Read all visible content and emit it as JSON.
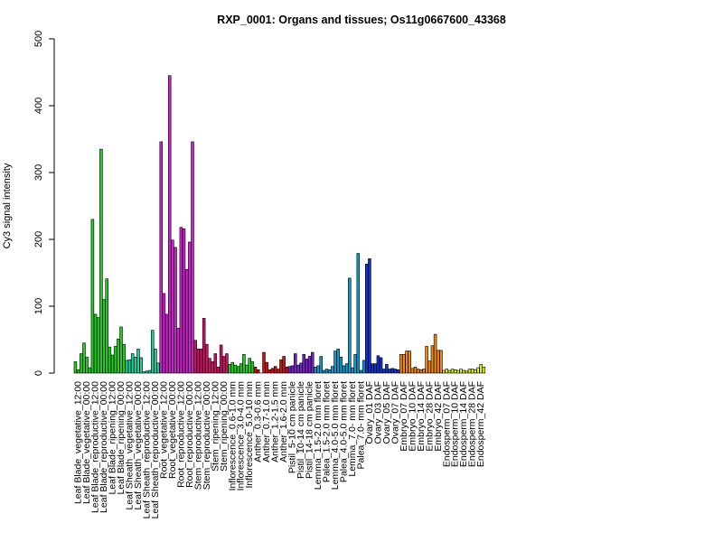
{
  "chart_data": {
    "type": "bar",
    "title": "RXP_0001: Organs and tissues; Os11g0667600_43368",
    "xlabel": "",
    "ylabel": "Cy3 signal intensity",
    "ylim": [
      0,
      500
    ],
    "yticks": [
      0,
      100,
      200,
      300,
      400,
      500
    ],
    "grid": false,
    "legend": "none",
    "categories": [
      "Leaf Blade_vegetative_12:00",
      "Leaf Blade_vegetative_00:00",
      "Leaf Blade_reproductive_12:00",
      "Leaf Blade_reproductive_00:00",
      "Leaf Blade_ripening_12:00",
      "Leaf Blade_ripening_00:00",
      "Leaf Sheath_vegetative_12:00",
      "Leaf Sheath_vegetative_00:00",
      "Leaf Sheath_reproductive_12:00",
      "Leaf Sheath_reproductive_00:00",
      "Root_vegetative_12:00",
      "Root_vegetative_00:00",
      "Root_reproductive_12:00",
      "Root_reproductive_00:00",
      "Stem_reproductive_12:00",
      "Stem_reproductive_00:00",
      "Stem_ripening_12:00",
      "Stem_ripening_00:00",
      "Inflorescence_0.6-1.0 mm",
      "Inflorescence_3.0-4.0 mm",
      "Inflorescence_5.0-10 mm",
      "Anther_0.3-0.6 mm",
      "Anther_0.7-1.0 mm",
      "Anther_1.2-1.5 mm",
      "Anther_1.6-2.0 mm",
      "Pistil_5-10 cm panicle",
      "Pistil_10-14 cm panicle",
      "Pistil_14-18 cm panicle",
      "Lemma_1.5-2.0 mm floret",
      "Palea_1.5-2.0 mm floret",
      "Lemma_4.0-5.0 mm floret",
      "Palea_4.0-5.0 mm floret",
      "Lemma_7.0- mm floret",
      "Palea_7.0- mm floret",
      "Ovary_01 DAF",
      "Ovary_03 DAF",
      "Ovary_05 DAF",
      "Ovary_07 DAF",
      "Embryo_07 DAF",
      "Embryo_10 DAF",
      "Embryo_14 DAF",
      "Embryo_28 DAF",
      "Embryo_42 DAF",
      "Endosperm_07 DAF",
      "Endosperm_10 DAF",
      "Endosperm_14 DAF",
      "Endosperm_28 DAF",
      "Endosperm_42 DAF"
    ],
    "replicate_values": [
      [
        17,
        5,
        29
      ],
      [
        45,
        24,
        8
      ],
      [
        230,
        88,
        83
      ],
      [
        335,
        110,
        141
      ],
      [
        39,
        27,
        40
      ],
      [
        51,
        69,
        43
      ],
      [
        19,
        20,
        29
      ],
      [
        24,
        36,
        23
      ],
      [
        2,
        3,
        4
      ],
      [
        64,
        36,
        15
      ],
      [
        346,
        119,
        88
      ],
      [
        445,
        199,
        188
      ],
      [
        67,
        218,
        216
      ],
      [
        155,
        196,
        346
      ],
      [
        49,
        36,
        36
      ],
      [
        82,
        43,
        22
      ],
      [
        17,
        29,
        9
      ],
      [
        42,
        25,
        29
      ],
      [
        13,
        16,
        12
      ],
      [
        10,
        14,
        28
      ],
      [
        12,
        22,
        17
      ],
      [
        9,
        5,
        0
      ],
      [
        31,
        16,
        5
      ],
      [
        7,
        10,
        6
      ],
      [
        20,
        25,
        9
      ],
      [
        10,
        11,
        29
      ],
      [
        12,
        15,
        28
      ],
      [
        21,
        25,
        31
      ],
      [
        9,
        11,
        25
      ],
      [
        4,
        6,
        5
      ],
      [
        10,
        33,
        36
      ],
      [
        24,
        11,
        14
      ],
      [
        142,
        8,
        28
      ],
      [
        179,
        4,
        19
      ],
      [
        163,
        171,
        14
      ],
      [
        14,
        26,
        23
      ],
      [
        6,
        13,
        6
      ],
      [
        7,
        6,
        5
      ],
      [
        28,
        28,
        33
      ],
      [
        33,
        7,
        9
      ],
      [
        6,
        5,
        6
      ],
      [
        40,
        18,
        41
      ],
      [
        58,
        34,
        34
      ],
      [
        4,
        6,
        4
      ],
      [
        6,
        5,
        4
      ],
      [
        6,
        4,
        3
      ],
      [
        6,
        6,
        5
      ],
      [
        8,
        13,
        9
      ]
    ],
    "series_colors": [
      "#22cc22",
      "#22cc22",
      "#22cc22",
      "#22cc22",
      "#22cc22",
      "#22cc22",
      "#1ecf9e",
      "#1ecf9e",
      "#1ecf9e",
      "#1ecf9e",
      "#cc22cc",
      "#cc22cc",
      "#cc22cc",
      "#cc22cc",
      "#cc1166",
      "#cc1166",
      "#cc1166",
      "#cc1166",
      "#22cc22",
      "#22cc22",
      "#22cc22",
      "#cc1111",
      "#cc1111",
      "#cc1111",
      "#cc1111",
      "#7722cc",
      "#7722cc",
      "#7722cc",
      "#1199cc",
      "#1199cc",
      "#1199cc",
      "#1199cc",
      "#1199cc",
      "#1199cc",
      "#1133cc",
      "#1133cc",
      "#1133cc",
      "#1133cc",
      "#ee8811",
      "#ee8811",
      "#ee8811",
      "#ee8811",
      "#ee8811",
      "#ddee22",
      "#ddee22",
      "#ddee22",
      "#ddee22",
      "#ddee22"
    ]
  }
}
